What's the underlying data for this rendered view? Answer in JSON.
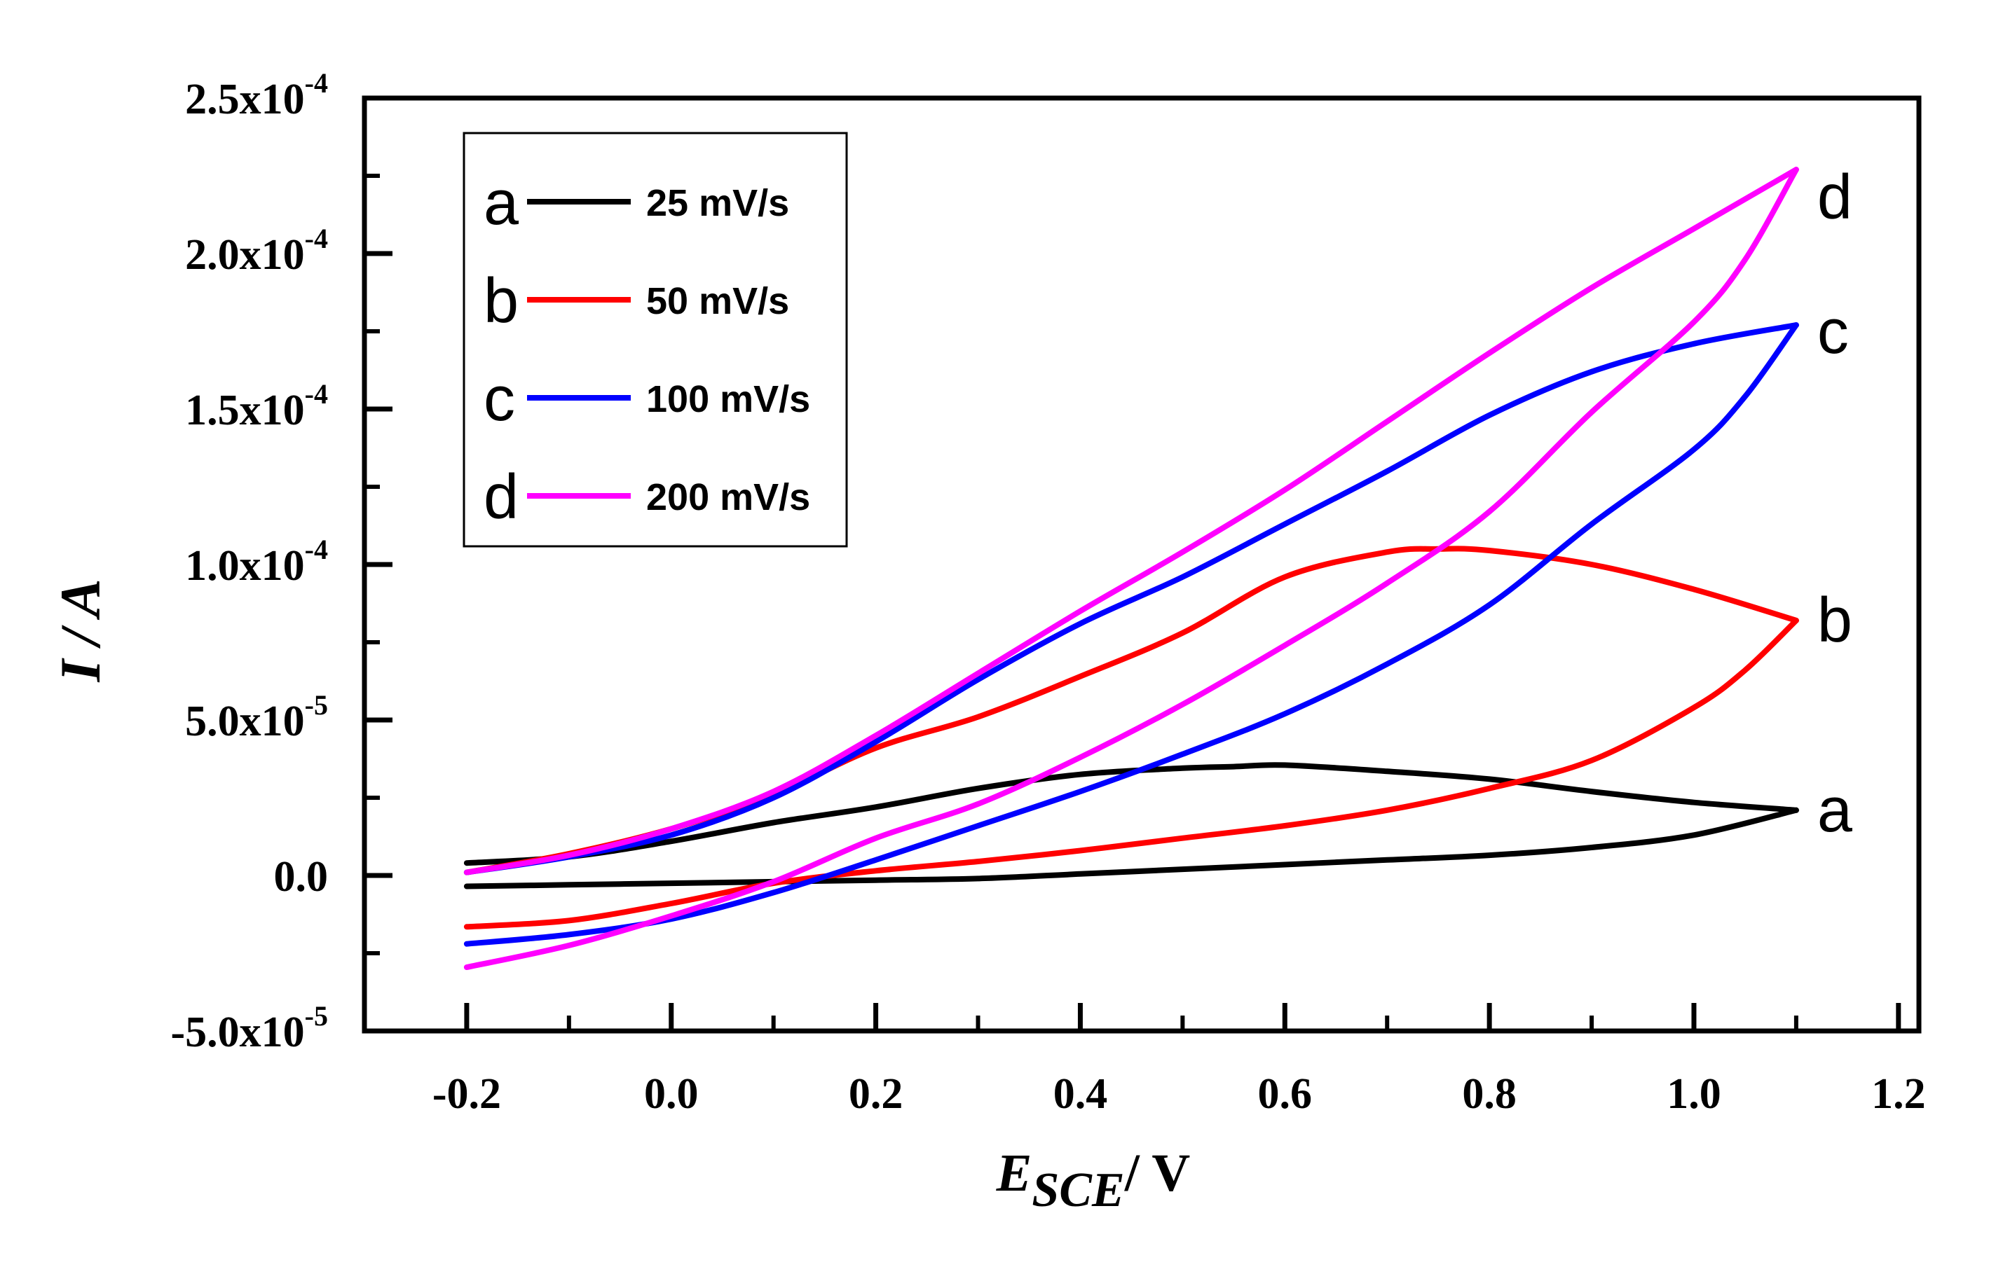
{
  "chart_data": {
    "type": "line",
    "subtype": "cyclic-voltammogram",
    "xlabel": {
      "main": "E",
      "sub": "SCE",
      "suffix": "/ V"
    },
    "ylabel": "I / A",
    "xlim": [
      -0.3,
      1.22
    ],
    "ylim": [
      -5e-05,
      0.00025
    ],
    "xticks": [
      {
        "value": -0.2,
        "label": "-0.2"
      },
      {
        "value": 0.0,
        "label": "0.0"
      },
      {
        "value": 0.2,
        "label": "0.2"
      },
      {
        "value": 0.4,
        "label": "0.4"
      },
      {
        "value": 0.6,
        "label": "0.6"
      },
      {
        "value": 0.8,
        "label": "0.8"
      },
      {
        "value": 1.0,
        "label": "1.0"
      },
      {
        "value": 1.2,
        "label": "1.2"
      }
    ],
    "yticks": [
      {
        "value": -5e-05,
        "mant": "-5.0x10",
        "exp": "-5"
      },
      {
        "value": 0.0,
        "mant": "0.0",
        "exp": ""
      },
      {
        "value": 5e-05,
        "mant": "5.0x10",
        "exp": "-5"
      },
      {
        "value": 0.0001,
        "mant": "1.0x10",
        "exp": "-4"
      },
      {
        "value": 0.00015,
        "mant": "1.5x10",
        "exp": "-4"
      },
      {
        "value": 0.0002,
        "mant": "2.0x10",
        "exp": "-4"
      },
      {
        "value": 0.00025,
        "mant": "2.5x10",
        "exp": "-4"
      }
    ],
    "legend_position": "top-left",
    "series": [
      {
        "letter": "a",
        "name": "25 mV/s",
        "color": "#000000",
        "forward": [
          [
            -0.2,
            4e-06
          ],
          [
            -0.1,
            6e-06
          ],
          [
            0.0,
            1.1e-05
          ],
          [
            0.1,
            1.7e-05
          ],
          [
            0.2,
            2.2e-05
          ],
          [
            0.3,
            2.8e-05
          ],
          [
            0.4,
            3.25e-05
          ],
          [
            0.5,
            3.45e-05
          ],
          [
            0.55,
            3.5e-05
          ],
          [
            0.6,
            3.55e-05
          ],
          [
            0.7,
            3.35e-05
          ],
          [
            0.8,
            3.1e-05
          ],
          [
            0.9,
            2.7e-05
          ],
          [
            1.0,
            2.35e-05
          ],
          [
            1.1,
            2.1e-05
          ]
        ],
        "reverse": [
          [
            1.1,
            2.1e-05
          ],
          [
            1.0,
            1.3e-05
          ],
          [
            0.9,
            9e-06
          ],
          [
            0.8,
            6.5e-06
          ],
          [
            0.7,
            5e-06
          ],
          [
            0.6,
            3.5e-06
          ],
          [
            0.5,
            2e-06
          ],
          [
            0.4,
            5e-07
          ],
          [
            0.3,
            -1e-06
          ],
          [
            0.2,
            -1.5e-06
          ],
          [
            0.1,
            -2e-06
          ],
          [
            0.0,
            -2.5e-06
          ],
          [
            -0.1,
            -3e-06
          ],
          [
            -0.2,
            -3.5e-06
          ]
        ]
      },
      {
        "letter": "b",
        "name": "50 mV/s",
        "color": "#ff0000",
        "forward": [
          [
            -0.2,
            1e-06
          ],
          [
            -0.1,
            7e-06
          ],
          [
            0.0,
            1.5e-05
          ],
          [
            0.1,
            2.6e-05
          ],
          [
            0.2,
            4.1e-05
          ],
          [
            0.3,
            5.1e-05
          ],
          [
            0.4,
            6.4e-05
          ],
          [
            0.5,
            7.8e-05
          ],
          [
            0.6,
            9.6e-05
          ],
          [
            0.7,
            0.000104
          ],
          [
            0.75,
            0.000105
          ],
          [
            0.8,
            0.0001045
          ],
          [
            0.9,
            0.0001
          ],
          [
            1.0,
            9.2e-05
          ],
          [
            1.1,
            8.2e-05
          ]
        ],
        "reverse": [
          [
            1.1,
            8.2e-05
          ],
          [
            1.05,
            6.6e-05
          ],
          [
            1.0,
            5.4e-05
          ],
          [
            0.9,
            3.7e-05
          ],
          [
            0.8,
            2.8e-05
          ],
          [
            0.7,
            2.1e-05
          ],
          [
            0.6,
            1.6e-05
          ],
          [
            0.5,
            1.2e-05
          ],
          [
            0.4,
            8e-06
          ],
          [
            0.3,
            4.5e-06
          ],
          [
            0.2,
            1.5e-06
          ],
          [
            0.1,
            -2.5e-06
          ],
          [
            0.0,
            -9e-06
          ],
          [
            -0.1,
            -1.45e-05
          ],
          [
            -0.2,
            -1.65e-05
          ]
        ]
      },
      {
        "letter": "c",
        "name": "100 mV/s",
        "color": "#0000ff",
        "forward": [
          [
            -0.2,
            1e-06
          ],
          [
            -0.1,
            6e-06
          ],
          [
            0.0,
            1.3e-05
          ],
          [
            0.1,
            2.5e-05
          ],
          [
            0.2,
            4.3e-05
          ],
          [
            0.3,
            6.3e-05
          ],
          [
            0.4,
            8.1e-05
          ],
          [
            0.5,
            9.6e-05
          ],
          [
            0.6,
            0.000113
          ],
          [
            0.7,
            0.00013
          ],
          [
            0.8,
            0.000148
          ],
          [
            0.9,
            0.000162
          ],
          [
            1.0,
            0.000171
          ],
          [
            1.1,
            0.000177
          ]
        ],
        "reverse": [
          [
            1.1,
            0.000177
          ],
          [
            1.05,
            0.000154
          ],
          [
            1.0,
            0.000137
          ],
          [
            0.9,
            0.000113
          ],
          [
            0.8,
            8.7e-05
          ],
          [
            0.7,
            6.8e-05
          ],
          [
            0.6,
            5.2e-05
          ],
          [
            0.5,
            3.9e-05
          ],
          [
            0.4,
            2.7e-05
          ],
          [
            0.3,
            1.6e-05
          ],
          [
            0.2,
            5e-06
          ],
          [
            0.1,
            -5.5e-06
          ],
          [
            0.0,
            -1.4e-05
          ],
          [
            -0.1,
            -1.9e-05
          ],
          [
            -0.2,
            -2.2e-05
          ]
        ]
      },
      {
        "letter": "d",
        "name": "200 mV/s",
        "color": "#ff00ff",
        "forward": [
          [
            -0.2,
            1e-06
          ],
          [
            -0.1,
            6.5e-06
          ],
          [
            0.0,
            1.5e-05
          ],
          [
            0.1,
            2.7e-05
          ],
          [
            0.2,
            4.5e-05
          ],
          [
            0.3,
            6.5e-05
          ],
          [
            0.4,
            8.5e-05
          ],
          [
            0.5,
            0.000104
          ],
          [
            0.6,
            0.000124
          ],
          [
            0.7,
            0.000146
          ],
          [
            0.8,
            0.000168
          ],
          [
            0.9,
            0.000189
          ],
          [
            1.0,
            0.000208
          ],
          [
            1.1,
            0.000227
          ]
        ],
        "reverse": [
          [
            1.1,
            0.000227
          ],
          [
            1.05,
            0.000198
          ],
          [
            1.0,
            0.000178
          ],
          [
            0.9,
            0.000149
          ],
          [
            0.8,
            0.000117
          ],
          [
            0.7,
            9.4e-05
          ],
          [
            0.6,
            7.4e-05
          ],
          [
            0.5,
            5.5e-05
          ],
          [
            0.4,
            3.8e-05
          ],
          [
            0.3,
            2.3e-05
          ],
          [
            0.2,
            1.2e-05
          ],
          [
            0.1,
            -2e-06
          ],
          [
            0.0,
            -1.3e-05
          ],
          [
            -0.1,
            -2.25e-05
          ],
          [
            -0.2,
            -2.95e-05
          ]
        ]
      }
    ],
    "curve_labels": [
      "a",
      "b",
      "c",
      "d"
    ]
  }
}
